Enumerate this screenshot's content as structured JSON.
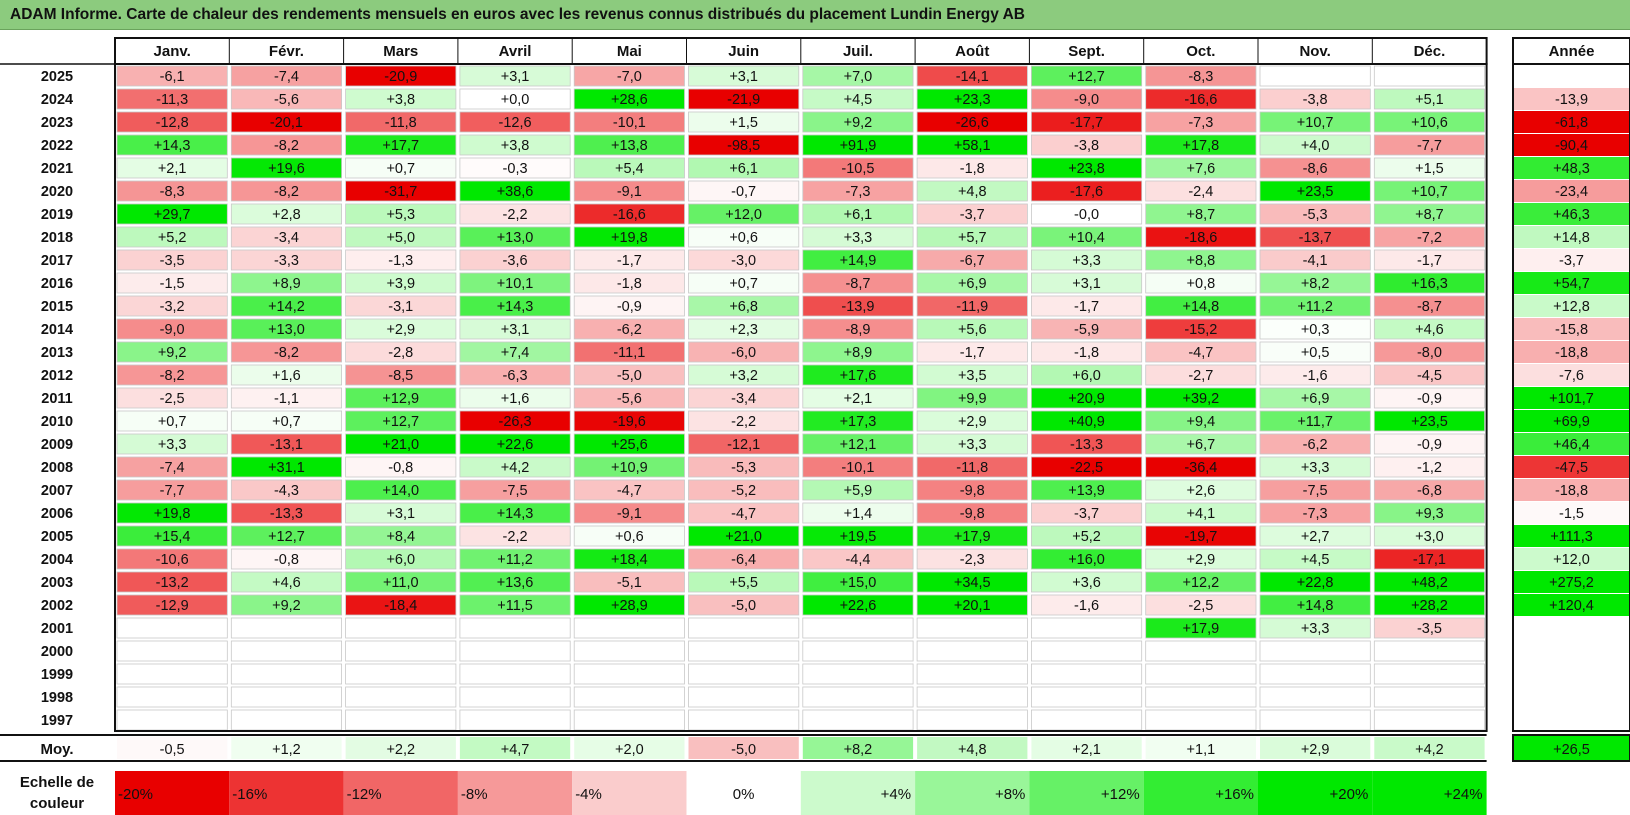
{
  "title": "ADAM Informe. Carte de chaleur des rendements mensuels en euros avec les revenus connus distribués du placement Lundin Energy AB",
  "chart_data": {
    "type": "heatmap",
    "columns": [
      "Janv.",
      "Févr.",
      "Mars",
      "Avril",
      "Mai",
      "Juin",
      "Juil.",
      "Août",
      "Sept.",
      "Oct.",
      "Nov.",
      "Déc."
    ],
    "year_header": "Année",
    "rows": [
      {
        "year": "2025",
        "months": [
          "-6,1",
          "-7,4",
          "-20,9",
          "+3,1",
          "-7,0",
          "+3,1",
          "+7,0",
          "-14,1",
          "+12,7",
          "-8,3",
          "",
          ""
        ],
        "annual": ""
      },
      {
        "year": "2024",
        "months": [
          "-11,3",
          "-5,6",
          "+3,8",
          "+0,0",
          "+28,6",
          "-21,9",
          "+4,5",
          "+23,3",
          "-9,0",
          "-16,6",
          "-3,8",
          "+5,1"
        ],
        "annual": "-13,9"
      },
      {
        "year": "2023",
        "months": [
          "-12,8",
          "-20,1",
          "-11,8",
          "-12,6",
          "-10,1",
          "+1,5",
          "+9,2",
          "-26,6",
          "-17,7",
          "-7,3",
          "+10,7",
          "+10,6"
        ],
        "annual": "-61,8"
      },
      {
        "year": "2022",
        "months": [
          "+14,3",
          "-8,2",
          "+17,7",
          "+3,8",
          "+13,8",
          "-98,5",
          "+91,9",
          "+58,1",
          "-3,8",
          "+17,8",
          "+4,0",
          "-7,7"
        ],
        "annual": "-90,4"
      },
      {
        "year": "2021",
        "months": [
          "+2,1",
          "+19,6",
          "+0,7",
          "-0,3",
          "+5,4",
          "+6,1",
          "-10,5",
          "-1,8",
          "+23,8",
          "+7,6",
          "-8,6",
          "+1,5"
        ],
        "annual": "+48,3"
      },
      {
        "year": "2020",
        "months": [
          "-8,3",
          "-8,2",
          "-31,7",
          "+38,6",
          "-9,1",
          "-0,7",
          "-7,3",
          "+4,8",
          "-17,6",
          "-2,4",
          "+23,5",
          "+10,7"
        ],
        "annual": "-23,4"
      },
      {
        "year": "2019",
        "months": [
          "+29,7",
          "+2,8",
          "+5,3",
          "-2,2",
          "-16,6",
          "+12,0",
          "+6,1",
          "-3,7",
          "-0,0",
          "+8,7",
          "-5,3",
          "+8,7"
        ],
        "annual": "+46,3"
      },
      {
        "year": "2018",
        "months": [
          "+5,2",
          "-3,4",
          "+5,0",
          "+13,0",
          "+19,8",
          "+0,6",
          "+3,3",
          "+5,7",
          "+10,4",
          "-18,6",
          "-13,7",
          "-7,2"
        ],
        "annual": "+14,8"
      },
      {
        "year": "2017",
        "months": [
          "-3,5",
          "-3,3",
          "-1,3",
          "-3,6",
          "-1,7",
          "-3,0",
          "+14,9",
          "-6,7",
          "+3,3",
          "+8,8",
          "-4,1",
          "-1,7"
        ],
        "annual": "-3,7"
      },
      {
        "year": "2016",
        "months": [
          "-1,5",
          "+8,9",
          "+3,9",
          "+10,1",
          "-1,8",
          "+0,7",
          "-8,7",
          "+6,9",
          "+3,1",
          "+0,8",
          "+8,2",
          "+16,3"
        ],
        "annual": "+54,7"
      },
      {
        "year": "2015",
        "months": [
          "-3,2",
          "+14,2",
          "-3,1",
          "+14,3",
          "-0,9",
          "+6,8",
          "-13,9",
          "-11,9",
          "-1,7",
          "+14,8",
          "+11,2",
          "-8,7"
        ],
        "annual": "+12,8"
      },
      {
        "year": "2014",
        "months": [
          "-9,0",
          "+13,0",
          "+2,9",
          "+3,1",
          "-6,2",
          "+2,3",
          "-8,9",
          "+5,6",
          "-5,9",
          "-15,2",
          "+0,3",
          "+4,6"
        ],
        "annual": "-15,8"
      },
      {
        "year": "2013",
        "months": [
          "+9,2",
          "-8,2",
          "-2,8",
          "+7,4",
          "-11,1",
          "-6,0",
          "+8,9",
          "-1,7",
          "-1,8",
          "-4,7",
          "+0,5",
          "-8,0"
        ],
        "annual": "-18,8"
      },
      {
        "year": "2012",
        "months": [
          "-8,2",
          "+1,6",
          "-8,5",
          "-6,3",
          "-5,0",
          "+3,2",
          "+17,6",
          "+3,5",
          "+6,0",
          "-2,7",
          "-1,6",
          "-4,5"
        ],
        "annual": "-7,6"
      },
      {
        "year": "2011",
        "months": [
          "-2,5",
          "-1,1",
          "+12,9",
          "+1,6",
          "-5,6",
          "-3,4",
          "+2,1",
          "+9,9",
          "+20,9",
          "+39,2",
          "+6,9",
          "-0,9"
        ],
        "annual": "+101,7"
      },
      {
        "year": "2010",
        "months": [
          "+0,7",
          "+0,7",
          "+12,7",
          "-26,3",
          "-19,6",
          "-2,2",
          "+17,3",
          "+2,9",
          "+40,9",
          "+9,4",
          "+11,7",
          "+23,5"
        ],
        "annual": "+69,9"
      },
      {
        "year": "2009",
        "months": [
          "+3,3",
          "-13,1",
          "+21,0",
          "+22,6",
          "+25,6",
          "-12,1",
          "+12,1",
          "+3,3",
          "-13,3",
          "+6,7",
          "-6,2",
          "-0,9"
        ],
        "annual": "+46,4"
      },
      {
        "year": "2008",
        "months": [
          "-7,4",
          "+31,1",
          "-0,8",
          "+4,2",
          "+10,9",
          "-5,3",
          "-10,1",
          "-11,8",
          "-22,5",
          "-36,4",
          "+3,3",
          "-1,2"
        ],
        "annual": "-47,5"
      },
      {
        "year": "2007",
        "months": [
          "-7,7",
          "-4,3",
          "+14,0",
          "-7,5",
          "-4,7",
          "-5,2",
          "+5,9",
          "-9,8",
          "+13,9",
          "+2,6",
          "-7,5",
          "-6,8"
        ],
        "annual": "-18,8"
      },
      {
        "year": "2006",
        "months": [
          "+19,8",
          "-13,3",
          "+3,1",
          "+14,3",
          "-9,1",
          "-4,7",
          "+1,4",
          "-9,8",
          "-3,7",
          "+4,1",
          "-7,3",
          "+9,3"
        ],
        "annual": "-1,5"
      },
      {
        "year": "2005",
        "months": [
          "+15,4",
          "+12,7",
          "+8,4",
          "-2,2",
          "+0,6",
          "+21,0",
          "+19,5",
          "+17,9",
          "+5,2",
          "-19,7",
          "+2,7",
          "+3,0"
        ],
        "annual": "+111,3"
      },
      {
        "year": "2004",
        "months": [
          "-10,6",
          "-0,8",
          "+6,0",
          "+11,2",
          "+18,4",
          "-6,4",
          "-4,4",
          "-2,3",
          "+16,0",
          "+2,9",
          "+4,5",
          "-17,1"
        ],
        "annual": "+12,0"
      },
      {
        "year": "2003",
        "months": [
          "-13,2",
          "+4,6",
          "+11,0",
          "+13,6",
          "-5,1",
          "+5,5",
          "+15,0",
          "+34,5",
          "+3,6",
          "+12,2",
          "+22,8",
          "+48,2"
        ],
        "annual": "+275,2"
      },
      {
        "year": "2002",
        "months": [
          "-12,9",
          "+9,2",
          "-18,4",
          "+11,5",
          "+28,9",
          "-5,0",
          "+22,6",
          "+20,1",
          "-1,6",
          "-2,5",
          "+14,8",
          "+28,2"
        ],
        "annual": "+120,4"
      },
      {
        "year": "2001",
        "months": [
          "",
          "",
          "",
          "",
          "",
          "",
          "",
          "",
          "",
          "+17,9",
          "+3,3",
          "-3,5"
        ],
        "annual": ""
      },
      {
        "year": "2000",
        "months": [
          "",
          "",
          "",
          "",
          "",
          "",
          "",
          "",
          "",
          "",
          "",
          ""
        ],
        "annual": ""
      },
      {
        "year": "1999",
        "months": [
          "",
          "",
          "",
          "",
          "",
          "",
          "",
          "",
          "",
          "",
          "",
          ""
        ],
        "annual": ""
      },
      {
        "year": "1998",
        "months": [
          "",
          "",
          "",
          "",
          "",
          "",
          "",
          "",
          "",
          "",
          "",
          ""
        ],
        "annual": ""
      },
      {
        "year": "1997",
        "months": [
          "",
          "",
          "",
          "",
          "",
          "",
          "",
          "",
          "",
          "",
          "",
          ""
        ],
        "annual": ""
      }
    ],
    "average": {
      "label": "Moy.",
      "months": [
        "-0,5",
        "+1,2",
        "+2,2",
        "+4,7",
        "+2,0",
        "-5,0",
        "+8,2",
        "+4,8",
        "+2,1",
        "+1,1",
        "+2,9",
        "+4,2"
      ],
      "annual": "+26,5"
    },
    "scale": {
      "label_line1": "Echelle de",
      "label_line2": "couleur",
      "items": [
        "-20%",
        "-16%",
        "-12%",
        "-8%",
        "-4%",
        "0%",
        "+4%",
        "+8%",
        "+12%",
        "+16%",
        "+20%",
        "+24%"
      ],
      "values": [
        -20,
        -16,
        -12,
        -8,
        -4,
        0,
        4,
        8,
        12,
        16,
        20,
        24
      ]
    },
    "colors": {
      "negative": "#ff0000",
      "neutral": "#ffffff",
      "positive": "#00ee00",
      "title_bar": "#8ccb7e"
    }
  }
}
